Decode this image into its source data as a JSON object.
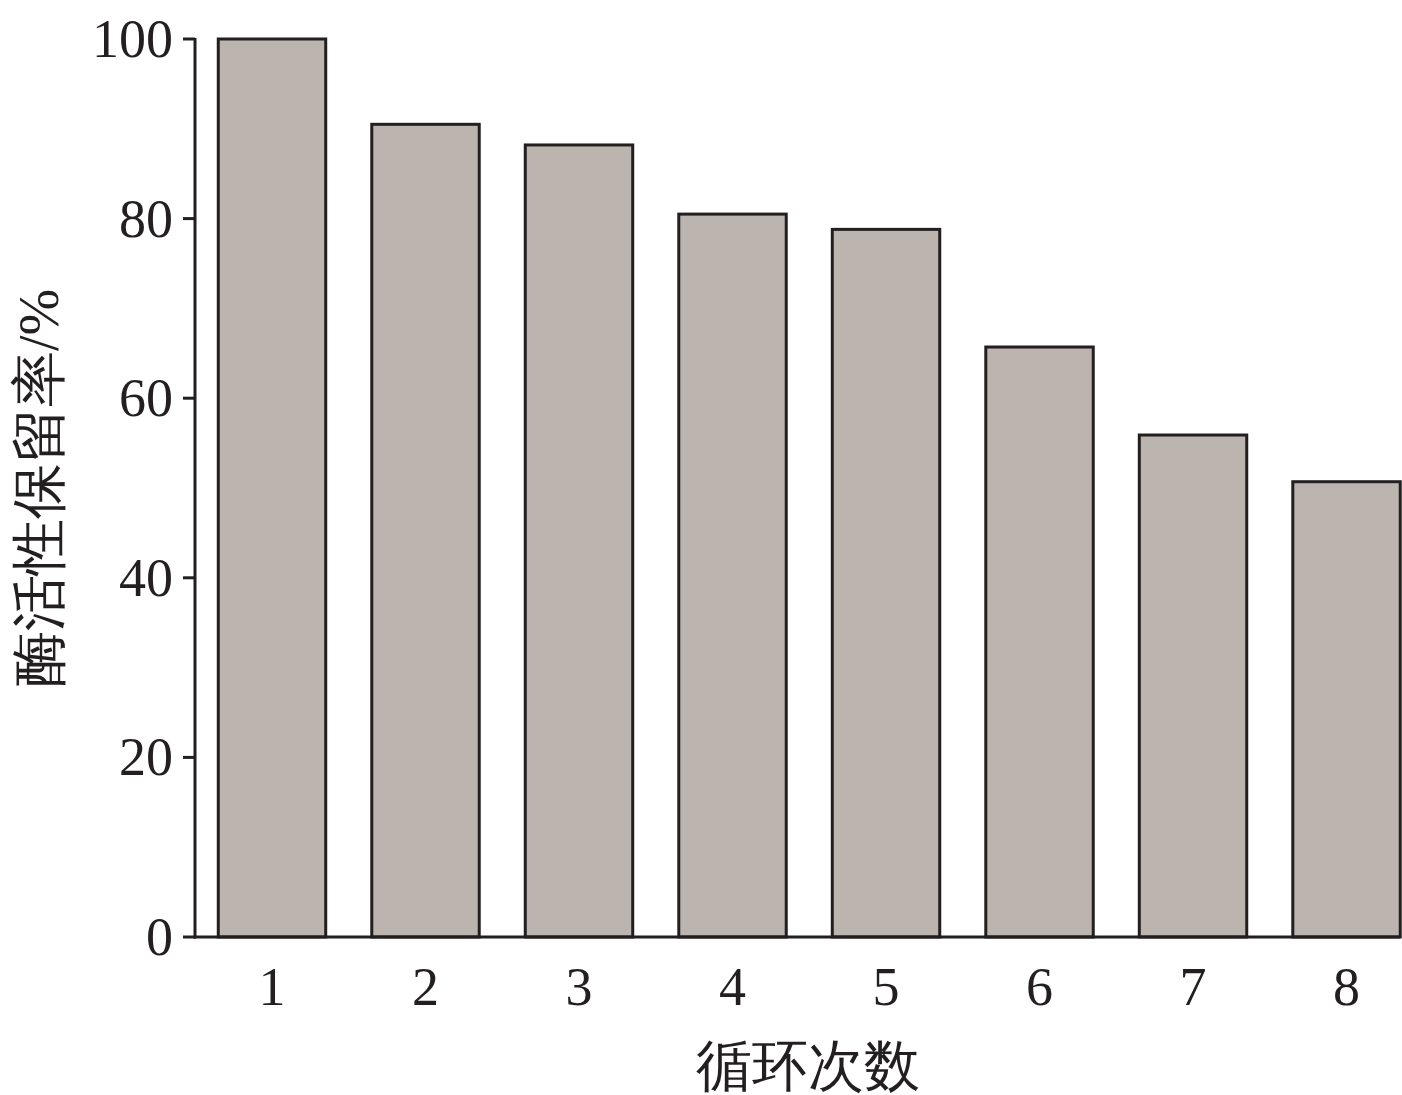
{
  "chart_data": {
    "type": "bar",
    "xlabel": "循环次数",
    "ylabel": "酶活性保留率/%",
    "categories": [
      "1",
      "2",
      "3",
      "4",
      "5",
      "6",
      "7",
      "8"
    ],
    "values": [
      100,
      90.5,
      88.2,
      80.5,
      78.8,
      65.7,
      55.9,
      50.7
    ],
    "color": "#bcb4af",
    "ylim": [
      0,
      100
    ],
    "yticks": [
      0,
      20,
      40,
      60,
      80,
      100
    ]
  }
}
